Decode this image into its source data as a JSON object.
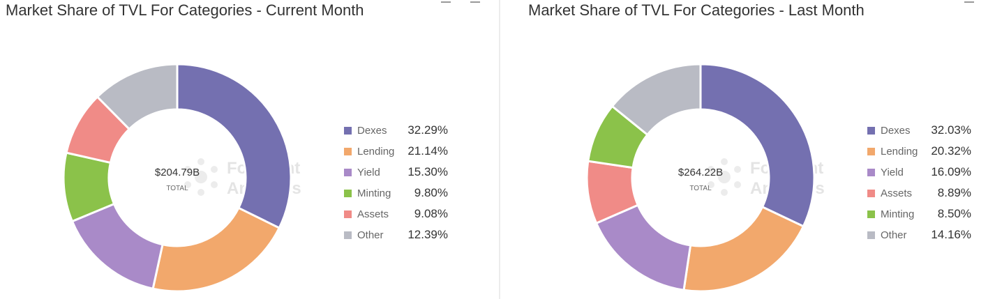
{
  "chart_data": [
    {
      "type": "pie",
      "title": "Market Share of TVL For Categories - Current Month",
      "center_value": "$204.79B",
      "center_label": "TOTAL",
      "slices": [
        {
          "name": "Dexes",
          "value": 32.29,
          "pct_label": "32.29%",
          "color": "#7470b0"
        },
        {
          "name": "Lending",
          "value": 21.14,
          "pct_label": "21.14%",
          "color": "#f2a86c"
        },
        {
          "name": "Yield",
          "value": 15.3,
          "pct_label": "15.30%",
          "color": "#a98ac8"
        },
        {
          "name": "Minting",
          "value": 9.8,
          "pct_label": "9.80%",
          "color": "#8bc24a"
        },
        {
          "name": "Assets",
          "value": 9.08,
          "pct_label": "9.08%",
          "color": "#f08b87"
        },
        {
          "name": "Other",
          "value": 12.39,
          "pct_label": "12.39%",
          "color": "#b9bbc4"
        }
      ],
      "legend_position": "right"
    },
    {
      "type": "pie",
      "title": "Market Share of TVL For Categories - Last Month",
      "center_value": "$264.22B",
      "center_label": "TOTAL",
      "slices": [
        {
          "name": "Dexes",
          "value": 32.03,
          "pct_label": "32.03%",
          "color": "#7470b0"
        },
        {
          "name": "Lending",
          "value": 20.32,
          "pct_label": "20.32%",
          "color": "#f2a86c"
        },
        {
          "name": "Yield",
          "value": 16.09,
          "pct_label": "16.09%",
          "color": "#a98ac8"
        },
        {
          "name": "Assets",
          "value": 8.89,
          "pct_label": "8.89%",
          "color": "#f08b87"
        },
        {
          "name": "Minting",
          "value": 8.5,
          "pct_label": "8.50%",
          "color": "#8bc24a"
        },
        {
          "name": "Other",
          "value": 14.16,
          "pct_label": "14.16%",
          "color": "#b9bbc4"
        }
      ],
      "legend_position": "right"
    }
  ],
  "watermark": {
    "line1": "Footprint",
    "line2": "Analytics",
    "icon": "footprint-logo-icon"
  },
  "tool_icons": [
    "minimize-icon",
    "window-control-icon"
  ]
}
